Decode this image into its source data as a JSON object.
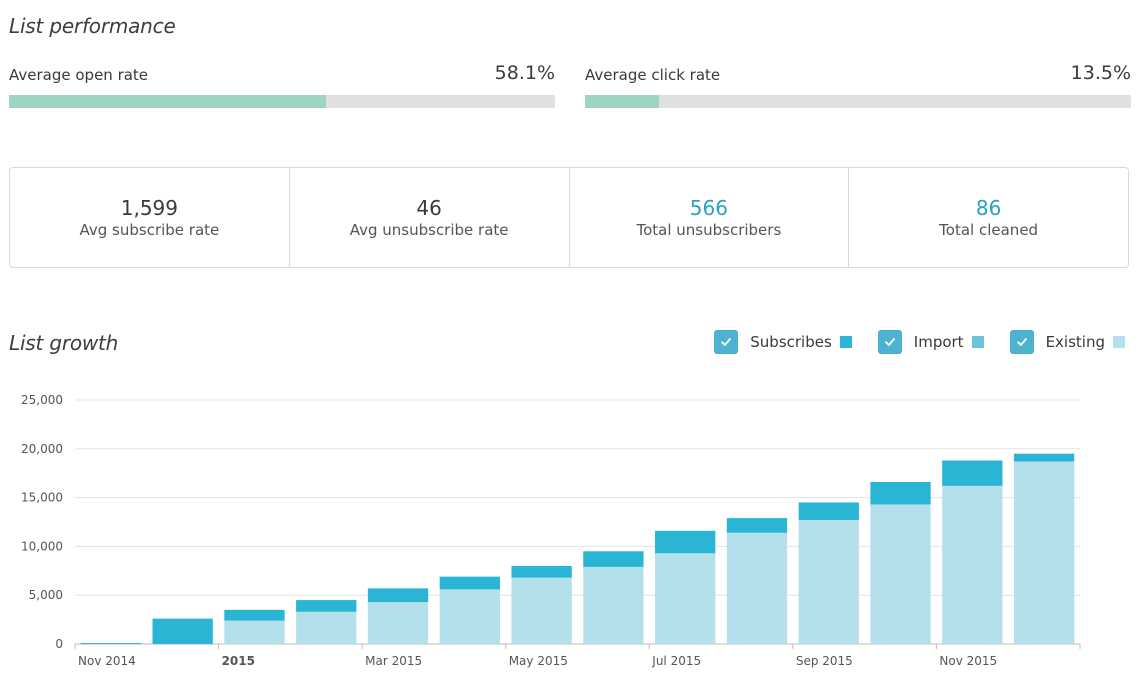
{
  "performance": {
    "title": "List performance",
    "open_rate": {
      "label": "Average open rate",
      "value_text": "58.1%",
      "value": 58.1
    },
    "click_rate": {
      "label": "Average click rate",
      "value_text": "13.5%",
      "value": 13.5
    }
  },
  "stats": [
    {
      "value": "1,599",
      "label": "Avg subscribe rate",
      "accent": false
    },
    {
      "value": "46",
      "label": "Avg unsubscribe rate",
      "accent": false
    },
    {
      "value": "566",
      "label": "Total unsubscribers",
      "accent": true
    },
    {
      "value": "86",
      "label": "Total cleaned",
      "accent": true
    }
  ],
  "growth": {
    "title": "List growth",
    "legend": [
      {
        "label": "Subscribes",
        "color": "#29b5d3",
        "checked": true
      },
      {
        "label": "Import",
        "color": "#6cc3d8",
        "checked": true
      },
      {
        "label": "Existing",
        "color": "#b3e0ea",
        "checked": true
      }
    ]
  },
  "colors": {
    "accent": "#2aa3bd",
    "progress_fill": "#9dd4c4",
    "progress_track": "#e0e0e0",
    "checkbox": "#4cb2cf"
  },
  "chart_data": {
    "type": "bar",
    "stacked": true,
    "x_tick_labels": [
      "Nov 2014",
      "2015",
      "Mar 2015",
      "May 2015",
      "Jul 2015",
      "Sep 2015",
      "Nov 2015"
    ],
    "x_tick_bold": [
      false,
      true,
      false,
      false,
      false,
      false,
      false
    ],
    "categories": [
      "Nov 2014",
      "Dec 2014",
      "Jan 2015",
      "Feb 2015",
      "Mar 2015",
      "Apr 2015",
      "May 2015",
      "Jun 2015",
      "Jul 2015",
      "Aug 2015",
      "Sep 2015",
      "Oct 2015",
      "Nov 2015",
      "Dec 2015"
    ],
    "series": [
      {
        "name": "Existing",
        "color": "#b3e0ea",
        "values": [
          0,
          0,
          2400,
          3300,
          4300,
          5600,
          6800,
          7900,
          9300,
          11400,
          12700,
          14300,
          16200,
          18700
        ]
      },
      {
        "name": "Subscribes",
        "color": "#29b5d3",
        "values": [
          100,
          2600,
          1100,
          1200,
          1400,
          1300,
          1200,
          1600,
          2300,
          1500,
          1800,
          2300,
          2600,
          800
        ]
      }
    ],
    "y_ticks": [
      0,
      5000,
      10000,
      15000,
      20000,
      25000
    ],
    "ylim": [
      0,
      25000
    ],
    "grid": true
  }
}
